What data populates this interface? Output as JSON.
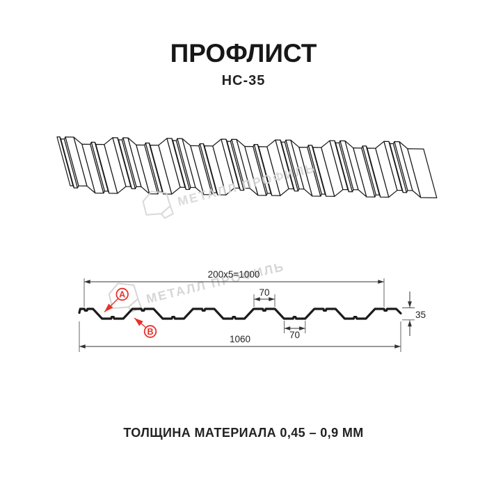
{
  "header": {
    "title": "ПРОФЛИСТ",
    "subtitle": "НС-35"
  },
  "footer": {
    "text": "ТОЛЩИНА МАТЕРИАЛА 0,45 – 0,9 ММ"
  },
  "watermark": {
    "text": "МЕТАЛЛ ПРОФИЛЬ",
    "color": "#d6d6d6"
  },
  "drawing": {
    "line_color": "#1b1b1b",
    "dim_color": "#333333",
    "accent_red": "#e53229",
    "dims": {
      "pitch": "200x5=1000",
      "crest_width": "70",
      "valley_width": "70",
      "overall_width": "1060",
      "height": "35"
    },
    "labels": {
      "a": "A",
      "b": "B"
    },
    "profile": {
      "type": "trapezoidal sheet profile HC-35",
      "period_mm": 200,
      "crest_top_mm": 70,
      "valley_mm": 70,
      "height_mm": 35,
      "overall_width_mm": 1060,
      "thickness_note": "0,45 – 0,9 ММ"
    }
  }
}
